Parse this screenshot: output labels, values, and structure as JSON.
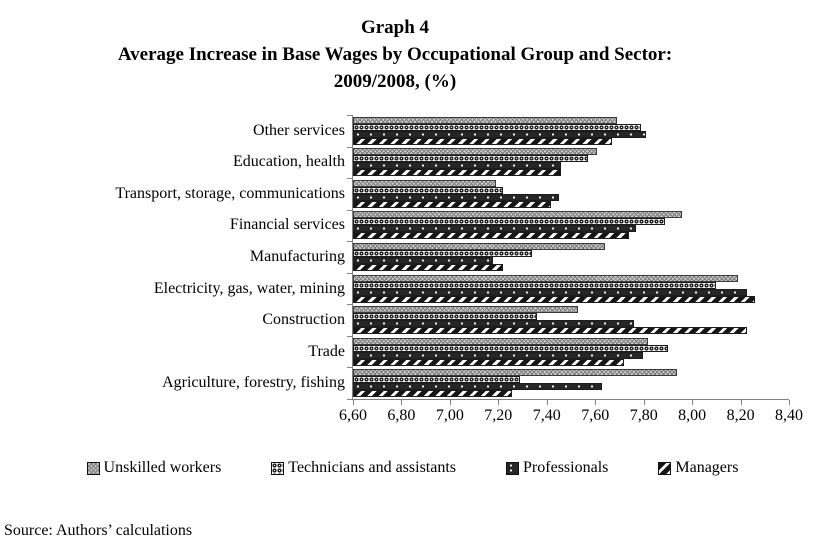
{
  "title": {
    "line1": "Graph 4",
    "line2": "Average Increase in Base Wages by Occupational Group and Sector:",
    "line3": "2009/2008, (%)"
  },
  "source": "Source: Authors’ calculations",
  "chart_data": {
    "type": "bar",
    "orientation": "horizontal",
    "title": "Graph 4 — Average Increase in Base Wages by Occupational Group and Sector: 2009/2008, (%)",
    "categories": [
      "Other services",
      "Education, health",
      "Transport, storage, communications",
      "Financial services",
      "Manufacturing",
      "Electricity, gas, water, mining",
      "Construction",
      "Trade",
      "Agriculture, forestry, fishing"
    ],
    "series": [
      {
        "name": "Unskilled workers",
        "values": [
          7.68,
          7.6,
          7.18,
          7.95,
          7.63,
          8.18,
          7.52,
          7.81,
          7.93
        ]
      },
      {
        "name": "Technicians and assistants",
        "values": [
          7.78,
          7.56,
          7.21,
          7.88,
          7.33,
          8.09,
          7.35,
          7.89,
          7.28
        ]
      },
      {
        "name": "Professionals",
        "values": [
          7.8,
          7.45,
          7.44,
          7.76,
          7.17,
          8.22,
          7.75,
          7.79,
          7.62
        ]
      },
      {
        "name": "Managers",
        "values": [
          7.66,
          7.45,
          7.41,
          7.73,
          7.21,
          8.25,
          8.22,
          7.71,
          7.25
        ]
      }
    ],
    "xlim": [
      6.6,
      8.4
    ],
    "x_tick_step": 0.2,
    "x_ticks": [
      "6,60",
      "6,80",
      "7,00",
      "7,20",
      "7,40",
      "7,60",
      "7,80",
      "8,00",
      "8,20",
      "8,40"
    ],
    "grid": false,
    "legend_position": "bottom"
  }
}
